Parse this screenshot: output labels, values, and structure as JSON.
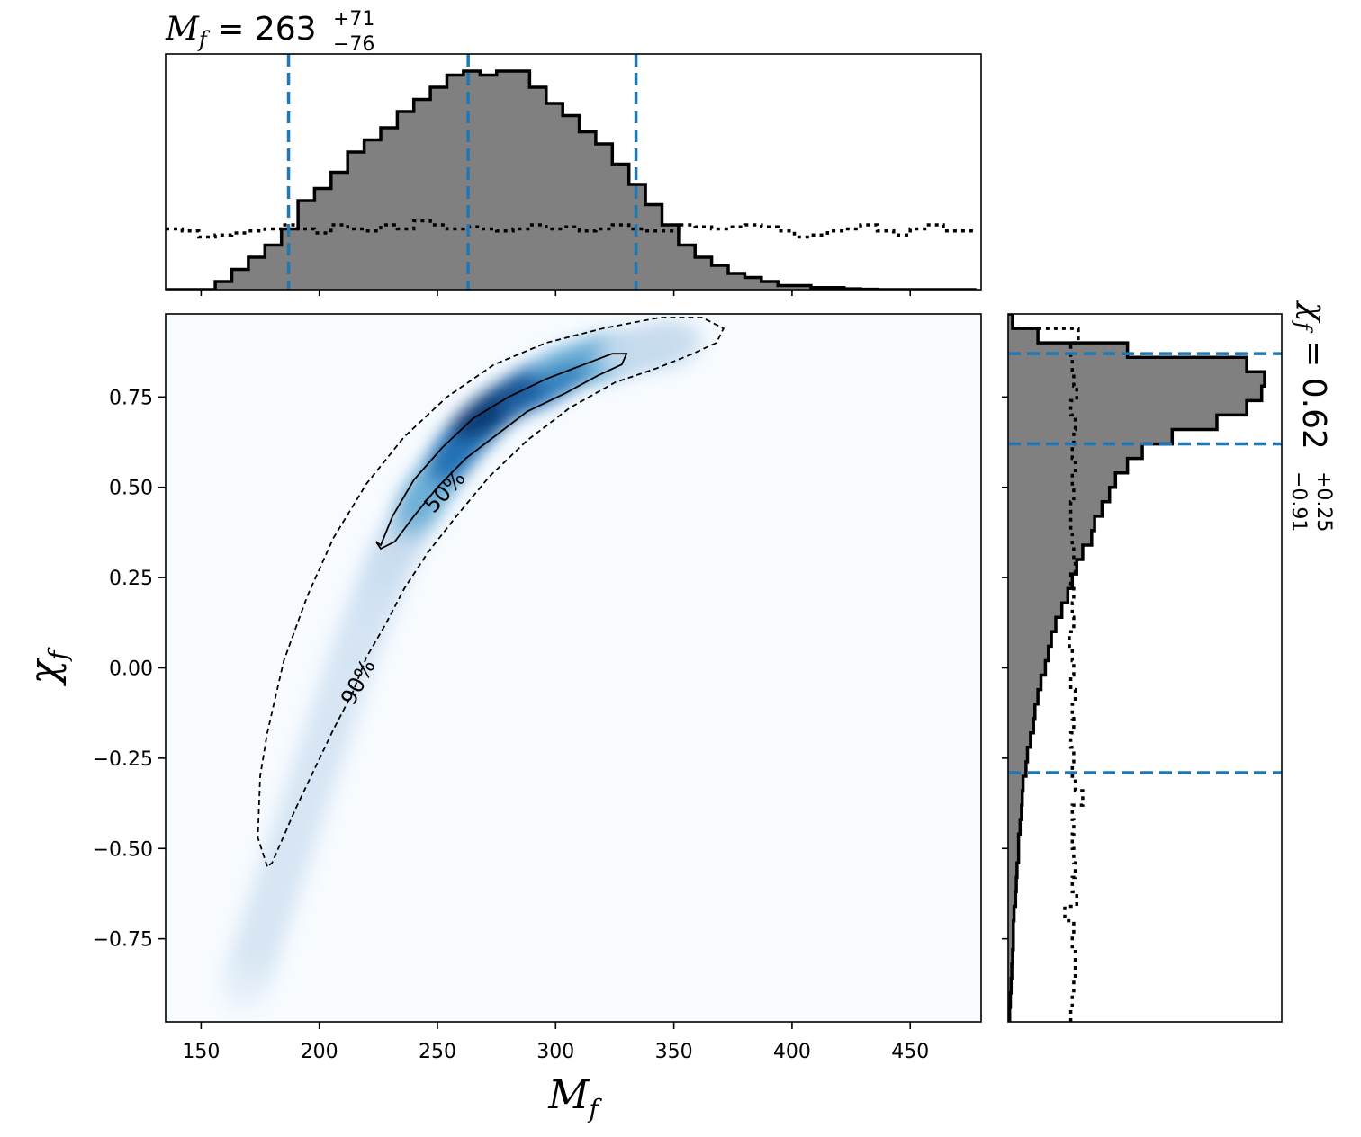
{
  "chart_data": [
    {
      "type": "heatmap",
      "panel": "joint",
      "xlabel": "M",
      "xlabel_sub": "f",
      "ylabel": "χ",
      "ylabel_sub": "f",
      "xlim": [
        135,
        480
      ],
      "ylim": [
        -0.98,
        0.98
      ],
      "xticks": [
        150,
        200,
        250,
        300,
        350,
        400,
        450
      ],
      "yticks": [
        0.75,
        0.5,
        0.25,
        0.0,
        -0.25,
        -0.5,
        -0.75
      ],
      "ytick_labels": [
        "0.75",
        "0.50",
        "0.25",
        "0.00",
        "−0.25",
        "−0.50",
        "−0.75"
      ],
      "colormap": [
        "#f7fbff",
        "#c6dbef",
        "#6baed6",
        "#2171b5",
        "#08306b"
      ],
      "density_ridge": {
        "x": [
          170,
          185,
          200,
          215,
          230,
          245,
          260,
          275,
          290,
          305,
          320,
          335,
          350
        ],
        "y": [
          -0.85,
          -0.55,
          -0.25,
          0.05,
          0.3,
          0.48,
          0.62,
          0.72,
          0.78,
          0.83,
          0.86,
          0.88,
          0.9
        ]
      },
      "density_peak": {
        "x": 275,
        "y": 0.72
      },
      "contours": [
        {
          "label": "50%",
          "style": "solid",
          "x": [
            226,
            231,
            240,
            252,
            265,
            280,
            296,
            312,
            324,
            330,
            328,
            318,
            304,
            288,
            274,
            262,
            250,
            240,
            232,
            226,
            224,
            226
          ],
          "y": [
            0.34,
            0.42,
            0.52,
            0.61,
            0.69,
            0.75,
            0.8,
            0.84,
            0.87,
            0.87,
            0.84,
            0.81,
            0.76,
            0.71,
            0.64,
            0.58,
            0.5,
            0.42,
            0.35,
            0.33,
            0.35,
            0.34
          ]
        },
        {
          "label": "90%",
          "style": "dashed",
          "x": [
            178,
            174,
            175,
            178,
            185,
            195,
            206,
            220,
            236,
            254,
            274,
            296,
            320,
            344,
            362,
            371,
            368,
            358,
            343,
            325,
            306,
            288,
            272,
            258,
            246,
            236,
            228,
            220,
            214,
            206,
            198,
            190,
            184,
            180,
            178
          ],
          "y": [
            -0.55,
            -0.47,
            -0.3,
            -0.18,
            0.02,
            0.2,
            0.36,
            0.51,
            0.64,
            0.75,
            0.84,
            0.9,
            0.94,
            0.97,
            0.97,
            0.94,
            0.9,
            0.87,
            0.83,
            0.79,
            0.72,
            0.63,
            0.53,
            0.42,
            0.32,
            0.22,
            0.12,
            0.03,
            -0.07,
            -0.17,
            -0.28,
            -0.39,
            -0.48,
            -0.54,
            -0.55
          ]
        }
      ]
    },
    {
      "type": "bar",
      "panel": "top-marginal",
      "title_base": "M",
      "title_sub": "f",
      "title_value": "263",
      "title_upper": "+71",
      "title_lower": "−76",
      "xlim": [
        135,
        480
      ],
      "bin_edges": [
        135,
        142,
        149,
        156,
        163,
        170,
        177,
        184,
        191,
        198,
        205,
        212,
        219,
        226,
        233,
        240,
        247,
        254,
        261,
        268,
        275,
        282,
        289,
        296,
        303,
        310,
        317,
        324,
        331,
        338,
        345,
        352,
        359,
        366,
        373,
        380,
        387,
        394,
        401,
        408,
        415,
        422,
        429,
        436,
        443,
        450,
        457,
        464,
        471,
        478
      ],
      "posterior": [
        0,
        0,
        0,
        0.2,
        0.5,
        0.8,
        1.1,
        1.5,
        2.2,
        2.5,
        2.9,
        3.4,
        3.7,
        4.0,
        4.4,
        4.7,
        5.0,
        5.3,
        5.4,
        5.3,
        5.4,
        5.4,
        5.0,
        4.6,
        4.3,
        3.9,
        3.6,
        3.1,
        2.6,
        2.1,
        1.6,
        1.1,
        0.8,
        0.6,
        0.4,
        0.3,
        0.2,
        0.1,
        0.1,
        0.05,
        0.05,
        0.02,
        0.01,
        0,
        0,
        0,
        0,
        0,
        0
      ],
      "prior": [
        1.5,
        1.45,
        1.3,
        1.35,
        1.4,
        1.45,
        1.5,
        1.6,
        1.5,
        1.4,
        1.6,
        1.5,
        1.45,
        1.6,
        1.5,
        1.7,
        1.6,
        1.5,
        1.55,
        1.5,
        1.45,
        1.5,
        1.6,
        1.5,
        1.55,
        1.45,
        1.5,
        1.6,
        1.5,
        1.45,
        1.45,
        1.6,
        1.55,
        1.5,
        1.55,
        1.6,
        1.55,
        1.45,
        1.3,
        1.35,
        1.45,
        1.5,
        1.6,
        1.45,
        1.35,
        1.5,
        1.6,
        1.45,
        1.45
      ],
      "ymax": 5.6,
      "credible_lines": [
        187,
        263,
        334
      ],
      "xticks": [
        150,
        200,
        250,
        300,
        350,
        400,
        450
      ]
    },
    {
      "type": "bar",
      "panel": "right-marginal",
      "orientation": "horizontal",
      "title_base": "χ",
      "title_sub": "f",
      "title_value": "0.62",
      "title_upper": "+0.25",
      "title_lower": "−0.91",
      "ylim": [
        -0.98,
        0.98
      ],
      "bin_edges": [
        -0.98,
        -0.94,
        -0.9,
        -0.86,
        -0.82,
        -0.78,
        -0.74,
        -0.7,
        -0.66,
        -0.62,
        -0.58,
        -0.54,
        -0.5,
        -0.46,
        -0.42,
        -0.38,
        -0.34,
        -0.3,
        -0.26,
        -0.22,
        -0.18,
        -0.14,
        -0.1,
        -0.06,
        -0.02,
        0.02,
        0.06,
        0.1,
        0.14,
        0.18,
        0.22,
        0.26,
        0.3,
        0.34,
        0.38,
        0.42,
        0.46,
        0.5,
        0.54,
        0.58,
        0.62,
        0.66,
        0.7,
        0.74,
        0.78,
        0.82,
        0.86,
        0.9,
        0.94,
        0.98
      ],
      "posterior": [
        0.1,
        0.15,
        0.2,
        0.25,
        0.3,
        0.35,
        0.35,
        0.4,
        0.5,
        0.55,
        0.6,
        0.7,
        0.7,
        0.8,
        0.9,
        0.95,
        1.0,
        1.2,
        1.3,
        1.5,
        1.7,
        1.8,
        2.0,
        2.2,
        2.5,
        2.7,
        2.9,
        3.2,
        3.6,
        4.0,
        4.3,
        4.6,
        5.0,
        5.6,
        5.8,
        6.3,
        6.8,
        7.2,
        8.0,
        9.0,
        11.0,
        14.0,
        16.0,
        17.0,
        17.2,
        16.0,
        8.0,
        2.0,
        0.3
      ],
      "prior": [
        4.2,
        4.3,
        4.4,
        4.5,
        4.5,
        4.3,
        4.4,
        3.8,
        4.6,
        4.3,
        4.5,
        4.4,
        4.3,
        4.4,
        4.3,
        5.0,
        4.5,
        4.3,
        4.4,
        4.2,
        4.4,
        4.3,
        4.5,
        4.2,
        4.4,
        4.3,
        4.1,
        4.4,
        4.3,
        4.4,
        4.2,
        4.5,
        4.4,
        4.3,
        4.2,
        4.2,
        4.4,
        4.3,
        4.5,
        4.3,
        4.4,
        4.5,
        4.2,
        4.6,
        4.4,
        4.3,
        4.2,
        4.7,
        0.3
      ],
      "xmax": 17.5,
      "credible_lines": [
        -0.29,
        0.62,
        0.87
      ]
    }
  ],
  "colors": {
    "hist_fill": "#808080",
    "hist_edge": "#000000",
    "credible_line": "#1f77b4",
    "contour": "#000000",
    "frame": "#000000"
  }
}
